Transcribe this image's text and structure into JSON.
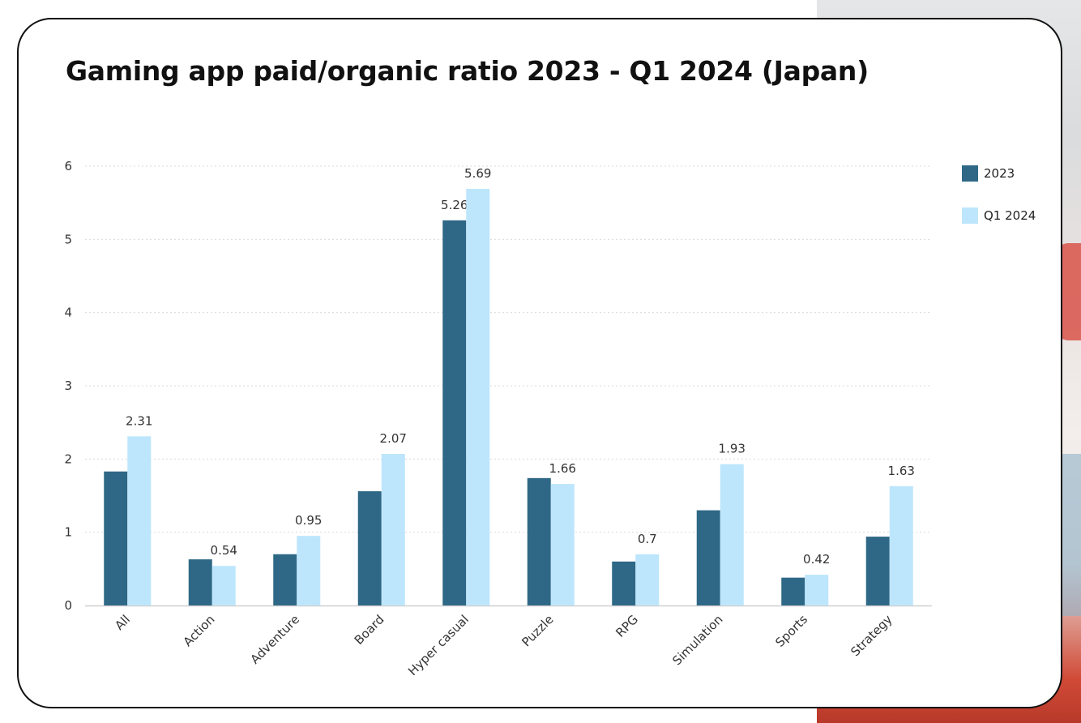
{
  "title": "Gaming app paid/organic ratio 2023 - Q1 2024 (Japan)",
  "colors": {
    "series_2023": "#2e6886",
    "series_q1_2024": "#bde6fc",
    "grid": "#d9d9d9",
    "axis": "#d0d0d0"
  },
  "chart_data": {
    "type": "bar",
    "title": "Gaming app paid/organic ratio 2023 - Q1 2024 (Japan)",
    "xlabel": "",
    "ylabel": "",
    "ylim": [
      0,
      6
    ],
    "yticks": [
      0,
      1,
      2,
      3,
      4,
      5,
      6
    ],
    "grid": true,
    "legend_position": "right",
    "categories": [
      "All",
      "Action",
      "Adventure",
      "Board",
      "Hyper casual",
      "Puzzle",
      "RPG",
      "Simulation",
      "Sports",
      "Strategy"
    ],
    "series": [
      {
        "name": "2023",
        "values": [
          1.83,
          0.63,
          0.7,
          1.56,
          5.26,
          1.74,
          0.6,
          1.3,
          0.38,
          0.94
        ],
        "labels": [
          "",
          "",
          "",
          "",
          "5.26",
          "",
          "",
          "",
          "",
          ""
        ]
      },
      {
        "name": "Q1 2024",
        "values": [
          2.31,
          0.54,
          0.95,
          2.07,
          5.69,
          1.66,
          0.7,
          1.93,
          0.42,
          1.63
        ],
        "labels": [
          "2.31",
          "0.54",
          "0.95",
          "2.07",
          "5.69",
          "1.66",
          "0.7",
          "1.93",
          "0.42",
          "1.63"
        ]
      }
    ]
  }
}
